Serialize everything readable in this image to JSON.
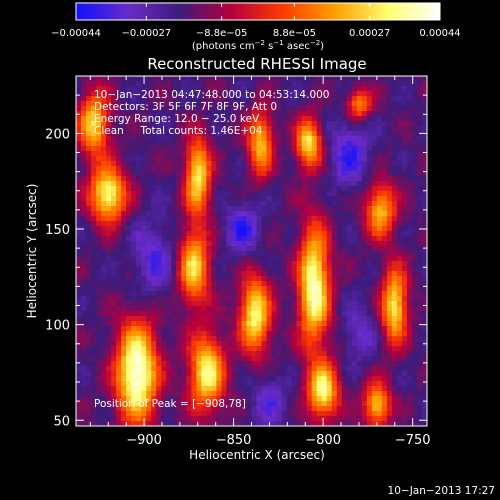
{
  "chart_data": {
    "type": "heatmap",
    "title": "Reconstructed RHESSI Image",
    "xlabel": "Heliocentric X (arcsec)",
    "ylabel": "Heliocentric Y (arcsec)",
    "xlim": [
      -938,
      -742
    ],
    "ylim": [
      47,
      230
    ],
    "xticks": [
      -900,
      -850,
      -800,
      -750
    ],
    "xtick_labels": [
      "−900",
      "−850",
      "−800",
      "−750"
    ],
    "yticks": [
      50,
      100,
      150,
      200
    ],
    "ytick_labels": [
      "50",
      "100",
      "150",
      "200"
    ],
    "colorbar": {
      "vmin": -0.00044,
      "vmax": 0.00044,
      "ticks": [
        -0.00044,
        -0.00027,
        -8.8e-05,
        8.8e-05,
        0.00027,
        0.00044
      ],
      "tick_labels": [
        "−0.00044",
        "−0.00027",
        "−8.8e−05",
        "8.8e−05",
        "0.00027",
        "0.00044"
      ],
      "unit_text": "(photons cm",
      "unit_exp1": "−2",
      "unit_mid": " s",
      "unit_exp2": "−1",
      "unit_mid2": " asec",
      "unit_exp3": "−2",
      "unit_end": ")",
      "colormap": [
        "#1010ff",
        "#6a2bc9",
        "#3c1b7a",
        "#b8003c",
        "#ff3c00",
        "#ffa000",
        "#ffff70",
        "#ffffff"
      ]
    },
    "annotations": [
      "10−Jan−2013 04:47:48.000 to 04:53:14.000",
      "Detectors: 3F 5F 6F 7F 8F 9F, Att 0",
      "Energy Range: 12.0 − 25.0 keV",
      "Clean     Total counts: 1.46E+04"
    ],
    "peak_text": "Position of Peak = [−908,78]",
    "hotspots": [
      {
        "x": -904,
        "y": 75,
        "amp": 1.0,
        "sx": 8,
        "sy": 18
      },
      {
        "x": -920,
        "y": 168,
        "amp": 0.85,
        "sx": 7,
        "sy": 10
      },
      {
        "x": -928,
        "y": 205,
        "amp": 0.7,
        "sx": 6,
        "sy": 12
      },
      {
        "x": -870,
        "y": 178,
        "amp": 0.75,
        "sx": 5,
        "sy": 14
      },
      {
        "x": -872,
        "y": 130,
        "amp": 0.7,
        "sx": 6,
        "sy": 14
      },
      {
        "x": -865,
        "y": 75,
        "amp": 0.8,
        "sx": 7,
        "sy": 14
      },
      {
        "x": -835,
        "y": 195,
        "amp": 0.65,
        "sx": 5,
        "sy": 12
      },
      {
        "x": -838,
        "y": 105,
        "amp": 0.8,
        "sx": 6,
        "sy": 14
      },
      {
        "x": -805,
        "y": 120,
        "amp": 0.9,
        "sx": 6,
        "sy": 22
      },
      {
        "x": -800,
        "y": 65,
        "amp": 0.8,
        "sx": 6,
        "sy": 10
      },
      {
        "x": -808,
        "y": 195,
        "amp": 0.75,
        "sx": 5,
        "sy": 9
      },
      {
        "x": -768,
        "y": 160,
        "amp": 0.65,
        "sx": 6,
        "sy": 10
      },
      {
        "x": -760,
        "y": 110,
        "amp": 0.75,
        "sx": 5,
        "sy": 14
      },
      {
        "x": -770,
        "y": 58,
        "amp": 0.7,
        "sx": 5,
        "sy": 8
      },
      {
        "x": -780,
        "y": 215,
        "amp": 0.55,
        "sx": 5,
        "sy": 6
      }
    ],
    "voids": [
      {
        "x": -895,
        "y": 135,
        "amp": 0.8,
        "sx": 8,
        "sy": 14
      },
      {
        "x": -845,
        "y": 150,
        "amp": 0.9,
        "sx": 7,
        "sy": 10
      },
      {
        "x": -785,
        "y": 190,
        "amp": 0.9,
        "sx": 8,
        "sy": 14
      },
      {
        "x": -780,
        "y": 95,
        "amp": 0.7,
        "sx": 6,
        "sy": 10
      },
      {
        "x": -830,
        "y": 60,
        "amp": 0.7,
        "sx": 7,
        "sy": 10
      }
    ]
  },
  "footer": {
    "timestamp": "10−Jan−2013 17:27"
  }
}
